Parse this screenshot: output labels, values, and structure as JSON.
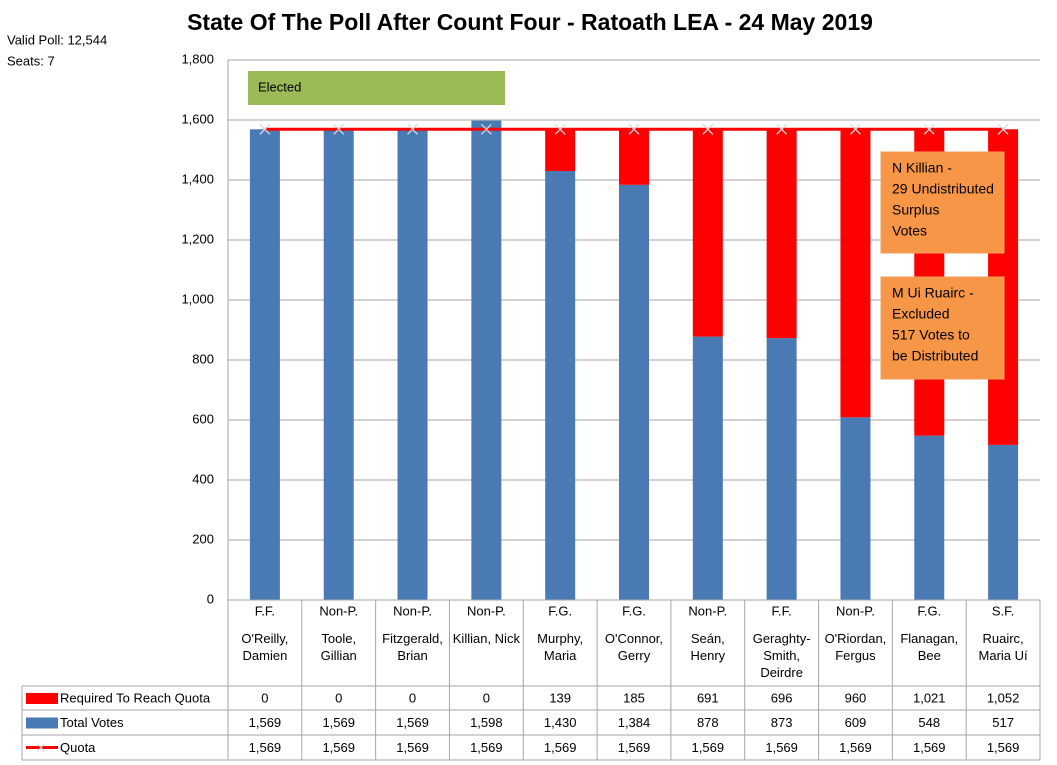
{
  "chart_data": {
    "type": "bar",
    "stacked": true,
    "title": "State Of The Poll After Count Four - Ratoath LEA - 24 May 2019",
    "valid_poll": "Valid Poll: 12,544",
    "seats": "Seats: 7",
    "elected_label": "Elected",
    "notes": [
      [
        "N Killian -",
        "29 Undistributed",
        "Surplus",
        "Votes"
      ],
      [
        "M Ui Ruairc -",
        "Excluded",
        "517 Votes to",
        "be Distributed"
      ]
    ],
    "parties": [
      "F.F.",
      "Non-P.",
      "Non-P.",
      "Non-P.",
      "F.G.",
      "F.G.",
      "Non-P.",
      "F.F.",
      "Non-P.",
      "F.G.",
      "S.F."
    ],
    "categories": [
      "O'Reilly, Damien",
      "Toole, Gillian",
      "Fitzgerald, Brian",
      "Killian, Nick",
      "Murphy, Maria",
      "O'Connor, Gerry",
      "Seán, Henry",
      "Geraghty-Smith, Deirdre",
      "O'Riordan, Fergus",
      "Flanagan, Bee",
      "Ruairc, Maria Uí"
    ],
    "series": [
      {
        "name": "Required To Reach Quota",
        "color": "#ff0000",
        "values": [
          0,
          0,
          0,
          0,
          139,
          185,
          691,
          696,
          960,
          1021,
          1052
        ],
        "value_labels": [
          "0",
          "0",
          "0",
          "0",
          "139",
          "185",
          "691",
          "696",
          "960",
          "1,021",
          "1,052"
        ]
      },
      {
        "name": "Total Votes",
        "color": "#4a7ab4",
        "values": [
          1569,
          1569,
          1569,
          1598,
          1430,
          1384,
          878,
          873,
          609,
          548,
          517
        ],
        "value_labels": [
          "1,569",
          "1,569",
          "1,569",
          "1,598",
          "1,430",
          "1,384",
          "878",
          "873",
          "609",
          "548",
          "517"
        ]
      },
      {
        "name": "Quota",
        "type": "line",
        "color": "#ff0000",
        "values": [
          1569,
          1569,
          1569,
          1569,
          1569,
          1569,
          1569,
          1569,
          1569,
          1569,
          1569
        ],
        "value_labels": [
          "1,569",
          "1,569",
          "1,569",
          "1,569",
          "1,569",
          "1,569",
          "1,569",
          "1,569",
          "1,569",
          "1,569",
          "1,569"
        ]
      }
    ],
    "ylim": [
      0,
      1800
    ],
    "yticks": [
      0,
      200,
      400,
      600,
      800,
      {
        "value": 1000,
        "label": "1,000"
      },
      {
        "value": 1200,
        "label": "1,200"
      },
      {
        "value": 1400,
        "label": "1,400"
      },
      {
        "value": 1600,
        "label": "1,600"
      },
      {
        "value": 1800,
        "label": "1,800"
      }
    ],
    "grid": true
  }
}
